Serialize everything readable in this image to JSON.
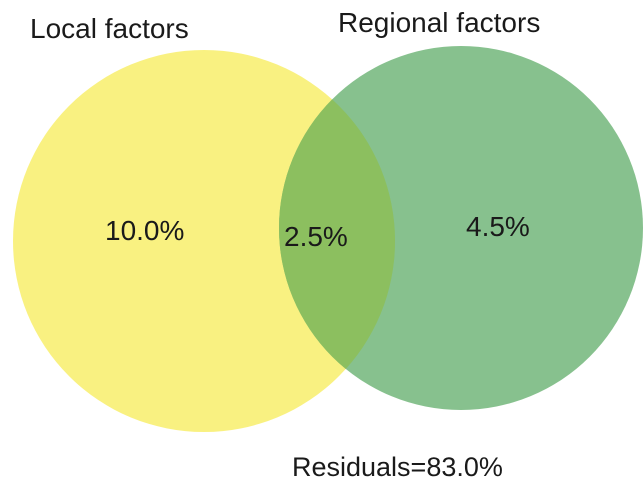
{
  "diagram": {
    "type": "venn",
    "sets": [
      {
        "key": "local",
        "label": "Local factors",
        "color": "#f8ef6b"
      },
      {
        "key": "regional",
        "label": "Regional factors",
        "color": "#72b67a"
      }
    ],
    "regions": {
      "local_only": "10.0%",
      "overlap": "2.5%",
      "regional_only": "4.5%"
    },
    "overlap_color": "#8cbf5f",
    "residuals_label": "Residuals=83.0%"
  }
}
